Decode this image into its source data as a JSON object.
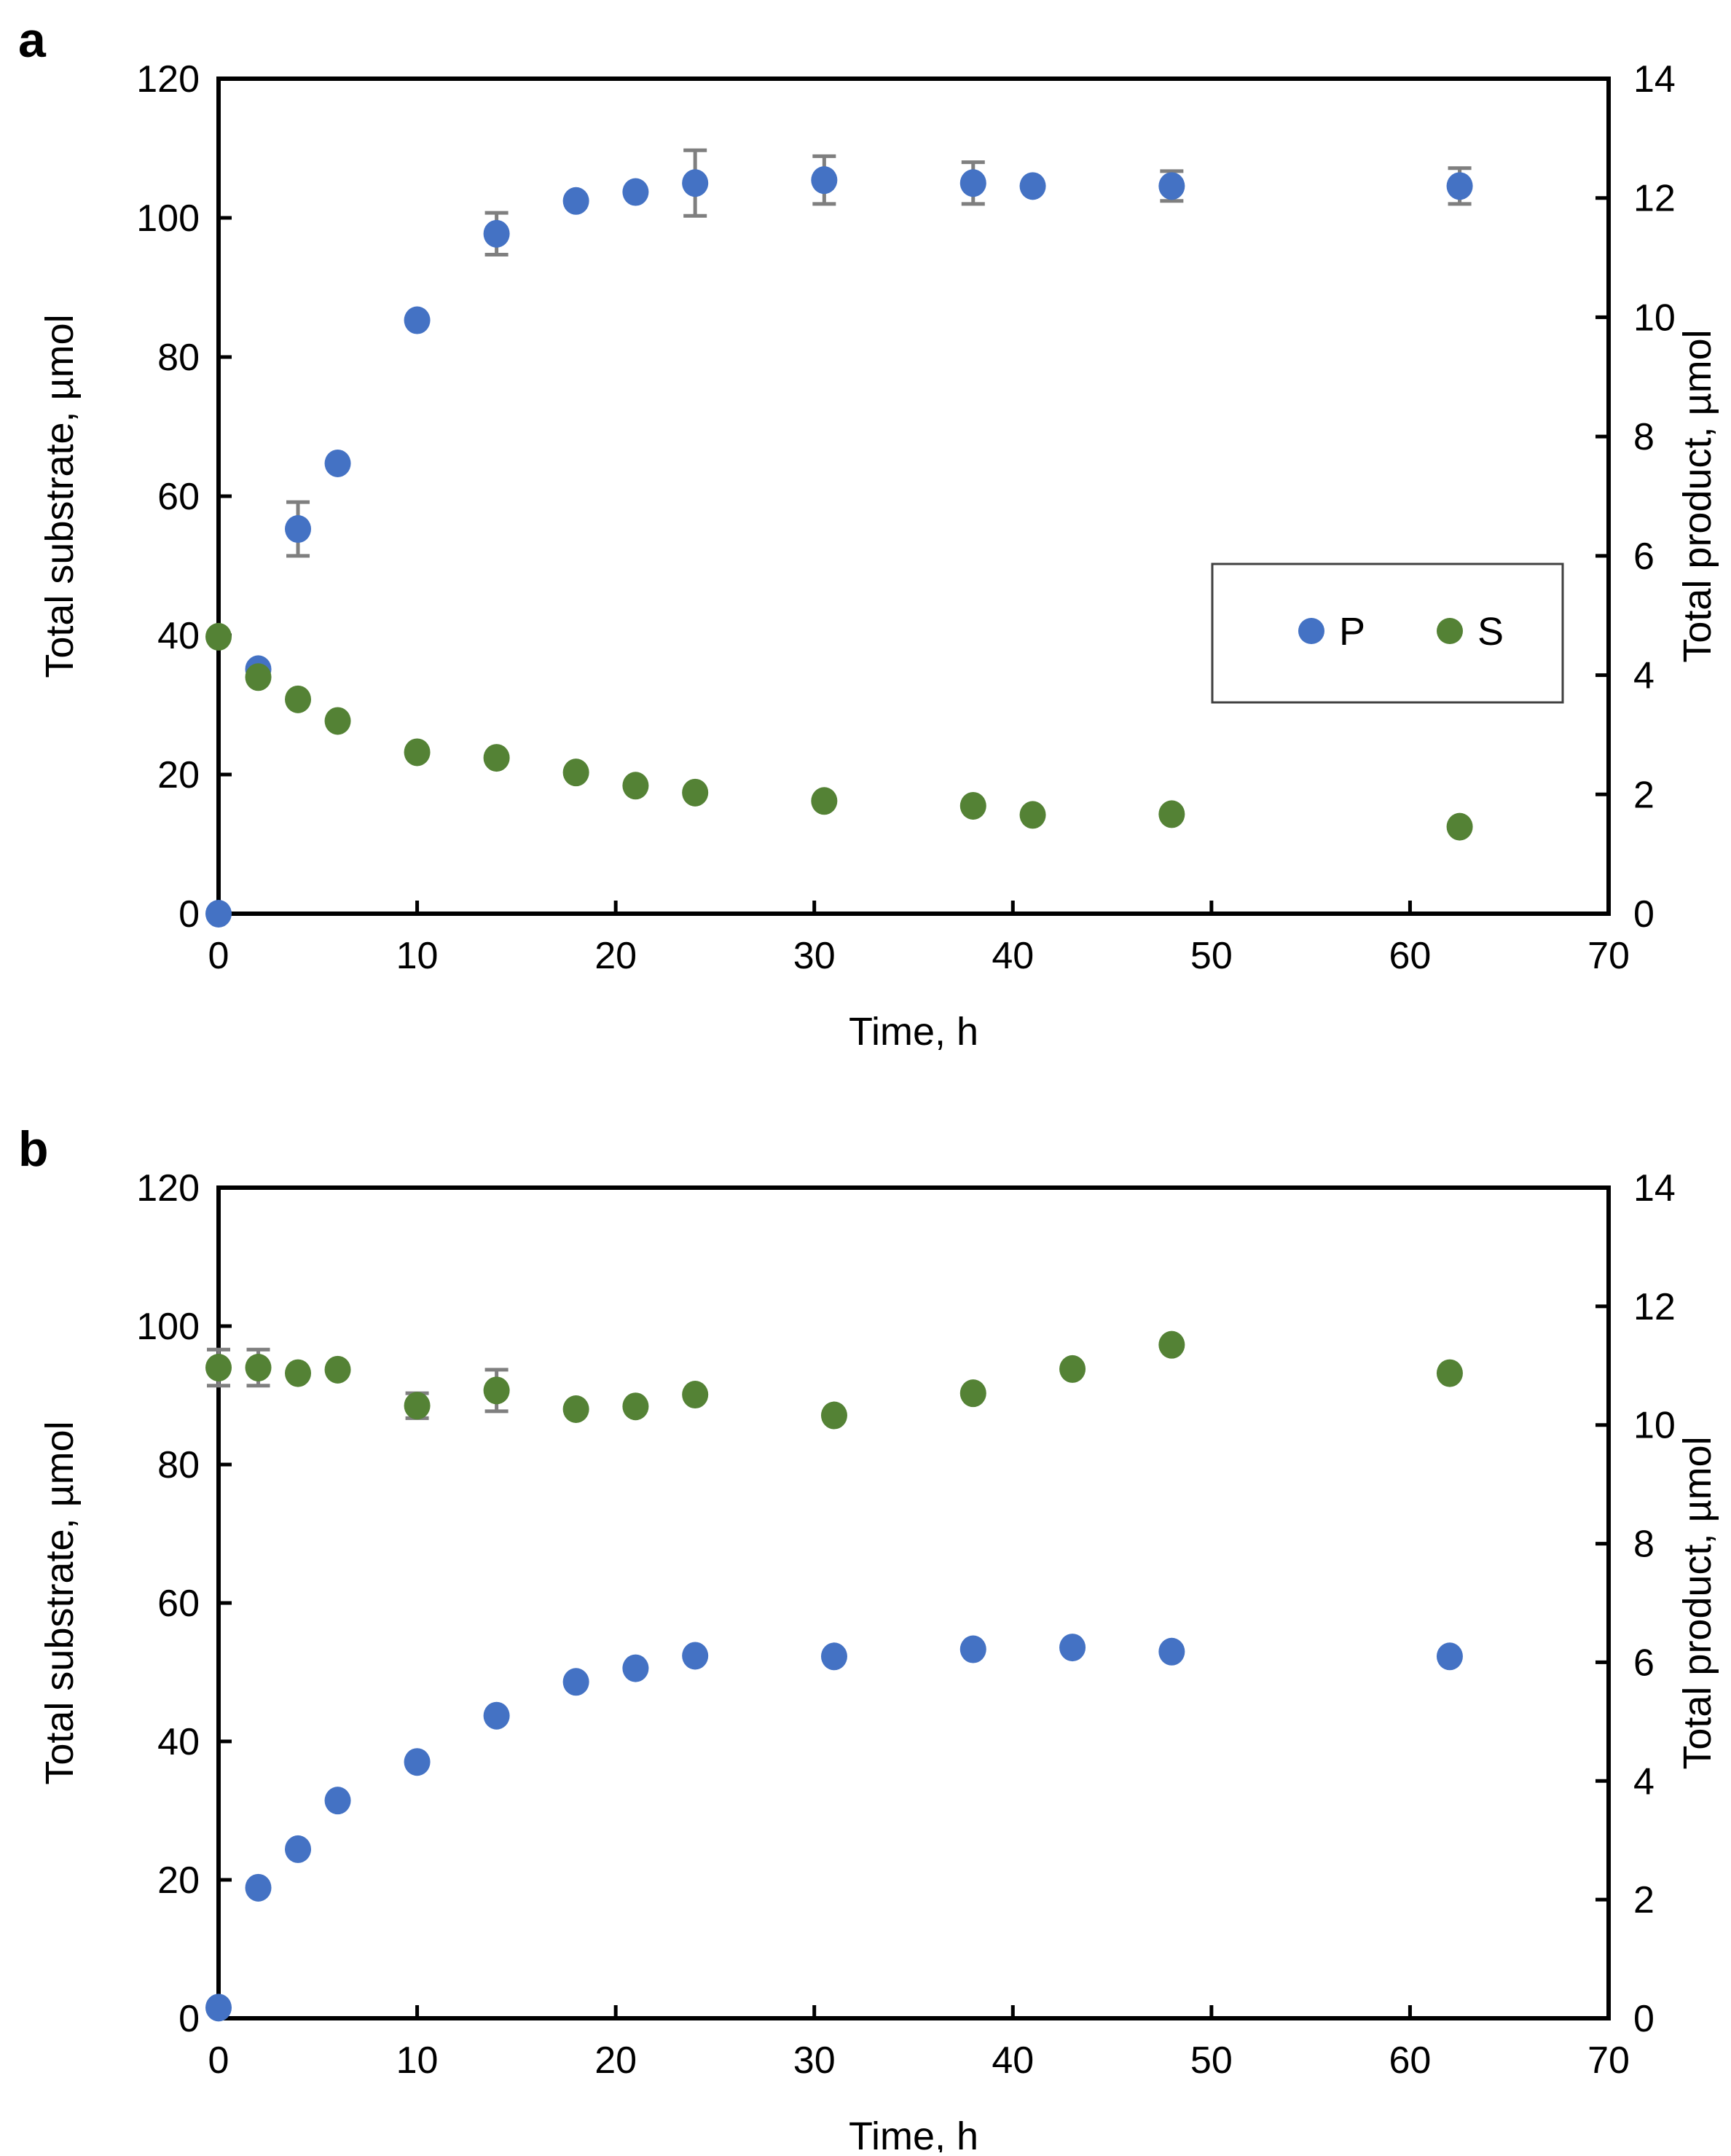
{
  "figure": {
    "background": "#ffffff",
    "panels_count": 2
  },
  "colors": {
    "p_series": "#4472C4",
    "s_series": "#548235",
    "error_bar": "#7F7F7F",
    "axis": "#000000",
    "legend_border": "#404040"
  },
  "chart_data": [
    {
      "type": "scatter",
      "panel_label": "a",
      "xlabel": "Time, h",
      "ylabel_left": "Total substrate, µmol",
      "ylabel_right": "Total product, µmol",
      "xlim": [
        0,
        70
      ],
      "xticks": [
        0,
        10,
        20,
        30,
        40,
        50,
        60,
        70
      ],
      "ylim_left": [
        0,
        120
      ],
      "yticks_left": [
        0,
        20,
        40,
        60,
        80,
        100,
        120
      ],
      "ylim_right": [
        0,
        14
      ],
      "yticks_right": [
        0,
        2,
        4,
        6,
        8,
        10,
        12,
        14
      ],
      "grid": false,
      "legend": {
        "show": true,
        "position": "inside-middle-right"
      },
      "series": [
        {
          "name": "P",
          "axis": "right",
          "color": "#4472C4",
          "marker": "circle",
          "x": [
            0,
            2,
            4,
            6,
            10,
            14,
            18,
            21,
            24,
            30.5,
            38,
            41,
            48,
            62.5
          ],
          "y": [
            0,
            4.1,
            6.45,
            7.55,
            9.95,
            11.4,
            11.95,
            12.1,
            12.25,
            12.3,
            12.25,
            12.2,
            12.2,
            12.2
          ],
          "yerr": [
            0,
            0,
            0.45,
            0,
            0,
            0.35,
            0,
            0,
            0.55,
            0.4,
            0.35,
            0,
            0.25,
            0.3
          ]
        },
        {
          "name": "S",
          "axis": "left",
          "color": "#548235",
          "marker": "circle",
          "x": [
            0,
            2,
            4,
            6,
            10,
            14,
            18,
            21,
            24,
            30.5,
            38,
            41,
            48,
            62.5
          ],
          "y": [
            39.8,
            34,
            30.8,
            27.7,
            23.2,
            22.4,
            20.3,
            18.4,
            17.4,
            16.2,
            15.5,
            14.2,
            14.3,
            12.5
          ],
          "yerr": [
            0,
            0,
            0,
            0,
            0,
            0,
            0,
            0,
            0,
            0,
            0,
            0,
            0,
            0
          ]
        }
      ]
    },
    {
      "type": "scatter",
      "panel_label": "b",
      "xlabel": "Time, h",
      "ylabel_left": "Total substrate, µmol",
      "ylabel_right": "Total product, µmol",
      "xlim": [
        0,
        70
      ],
      "xticks": [
        0,
        10,
        20,
        30,
        40,
        50,
        60,
        70
      ],
      "ylim_left": [
        0,
        120
      ],
      "yticks_left": [
        0,
        20,
        40,
        60,
        80,
        100,
        120
      ],
      "ylim_right": [
        0,
        14
      ],
      "yticks_right": [
        0,
        2,
        4,
        6,
        8,
        10,
        12,
        14
      ],
      "grid": false,
      "legend": {
        "show": false,
        "position": "none"
      },
      "series": [
        {
          "name": "P",
          "axis": "right",
          "color": "#4472C4",
          "marker": "circle",
          "x": [
            0,
            2,
            4,
            6,
            10,
            14,
            18,
            21,
            24,
            31,
            38,
            43,
            48,
            62
          ],
          "y": [
            0.18,
            2.2,
            2.85,
            3.67,
            4.32,
            5.1,
            5.67,
            5.9,
            6.11,
            6.1,
            6.22,
            6.25,
            6.18,
            6.1
          ],
          "yerr": [
            0,
            0,
            0,
            0,
            0,
            0,
            0,
            0,
            0,
            0,
            0,
            0,
            0,
            0
          ]
        },
        {
          "name": "S",
          "axis": "left",
          "color": "#548235",
          "marker": "circle",
          "x": [
            0,
            2,
            4,
            6,
            10,
            14,
            18,
            21,
            24,
            31,
            38,
            43,
            48,
            62
          ],
          "y": [
            94,
            94,
            93.2,
            93.7,
            88.5,
            90.7,
            88,
            88.4,
            90.1,
            87.1,
            90.3,
            93.8,
            97.3,
            93.2
          ],
          "yerr": [
            2.6,
            2.6,
            0,
            0,
            1.8,
            3.0,
            0,
            0,
            0,
            0,
            0,
            0,
            0,
            0
          ]
        }
      ]
    }
  ]
}
